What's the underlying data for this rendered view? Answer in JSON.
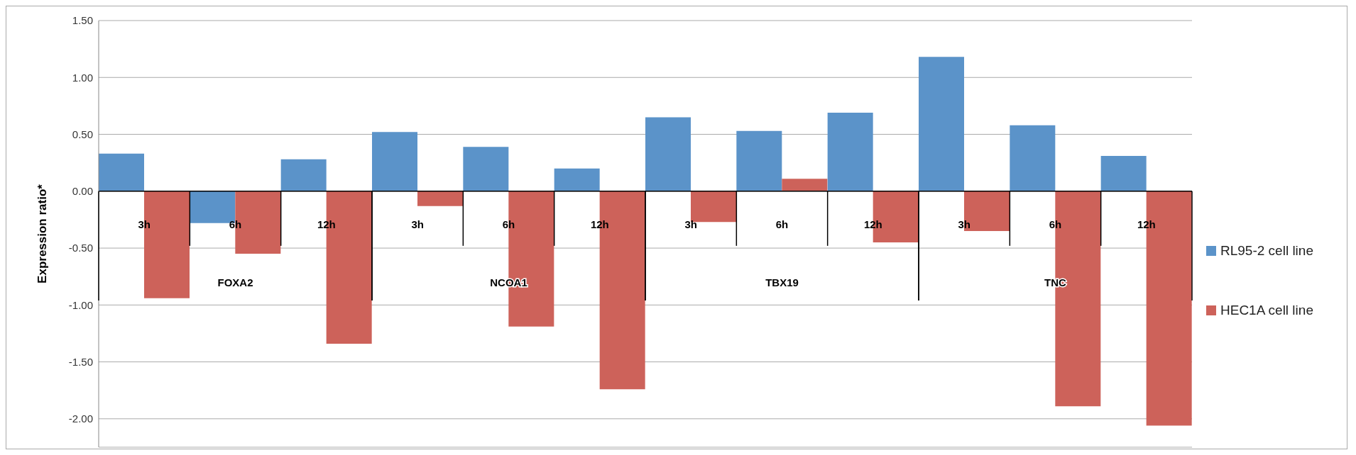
{
  "chart_data": {
    "type": "bar",
    "ylabel": "Expression ratio*",
    "categories": [
      "3h",
      "6h",
      "12h",
      "3h",
      "6h",
      "12h",
      "3h",
      "6h",
      "12h",
      "3h",
      "6h",
      "12h"
    ],
    "annotations": [
      "FOXA2",
      "NCOA1",
      "TBX19",
      "TNC"
    ],
    "series": [
      {
        "name": "RL95-2 cell line",
        "color": "#5b93c9",
        "values": [
          0.33,
          -0.28,
          0.28,
          0.52,
          0.39,
          0.2,
          0.65,
          0.53,
          0.69,
          1.18,
          0.58,
          0.31
        ]
      },
      {
        "name": "HEC1A cell line",
        "color": "#cd625a",
        "values": [
          -0.94,
          -0.55,
          -1.34,
          -0.13,
          -1.19,
          -1.74,
          -0.27,
          0.11,
          -0.45,
          -0.35,
          -1.89,
          -2.06
        ]
      }
    ],
    "ylim": [
      -2.25,
      1.5
    ],
    "yticks": [
      {
        "value": 1.5,
        "label": "1.50"
      },
      {
        "value": 1,
        "label": "1.00"
      },
      {
        "value": 0.5,
        "label": "0.50"
      },
      {
        "value": 0,
        "label": "0.00"
      },
      {
        "value": -0.5,
        "label": "-0.50"
      },
      {
        "value": -1,
        "label": "-1.00"
      },
      {
        "value": -1.5,
        "label": "-1.50"
      },
      {
        "value": -2,
        "label": "-2.00"
      }
    ],
    "grid": "y",
    "legend": "right"
  }
}
